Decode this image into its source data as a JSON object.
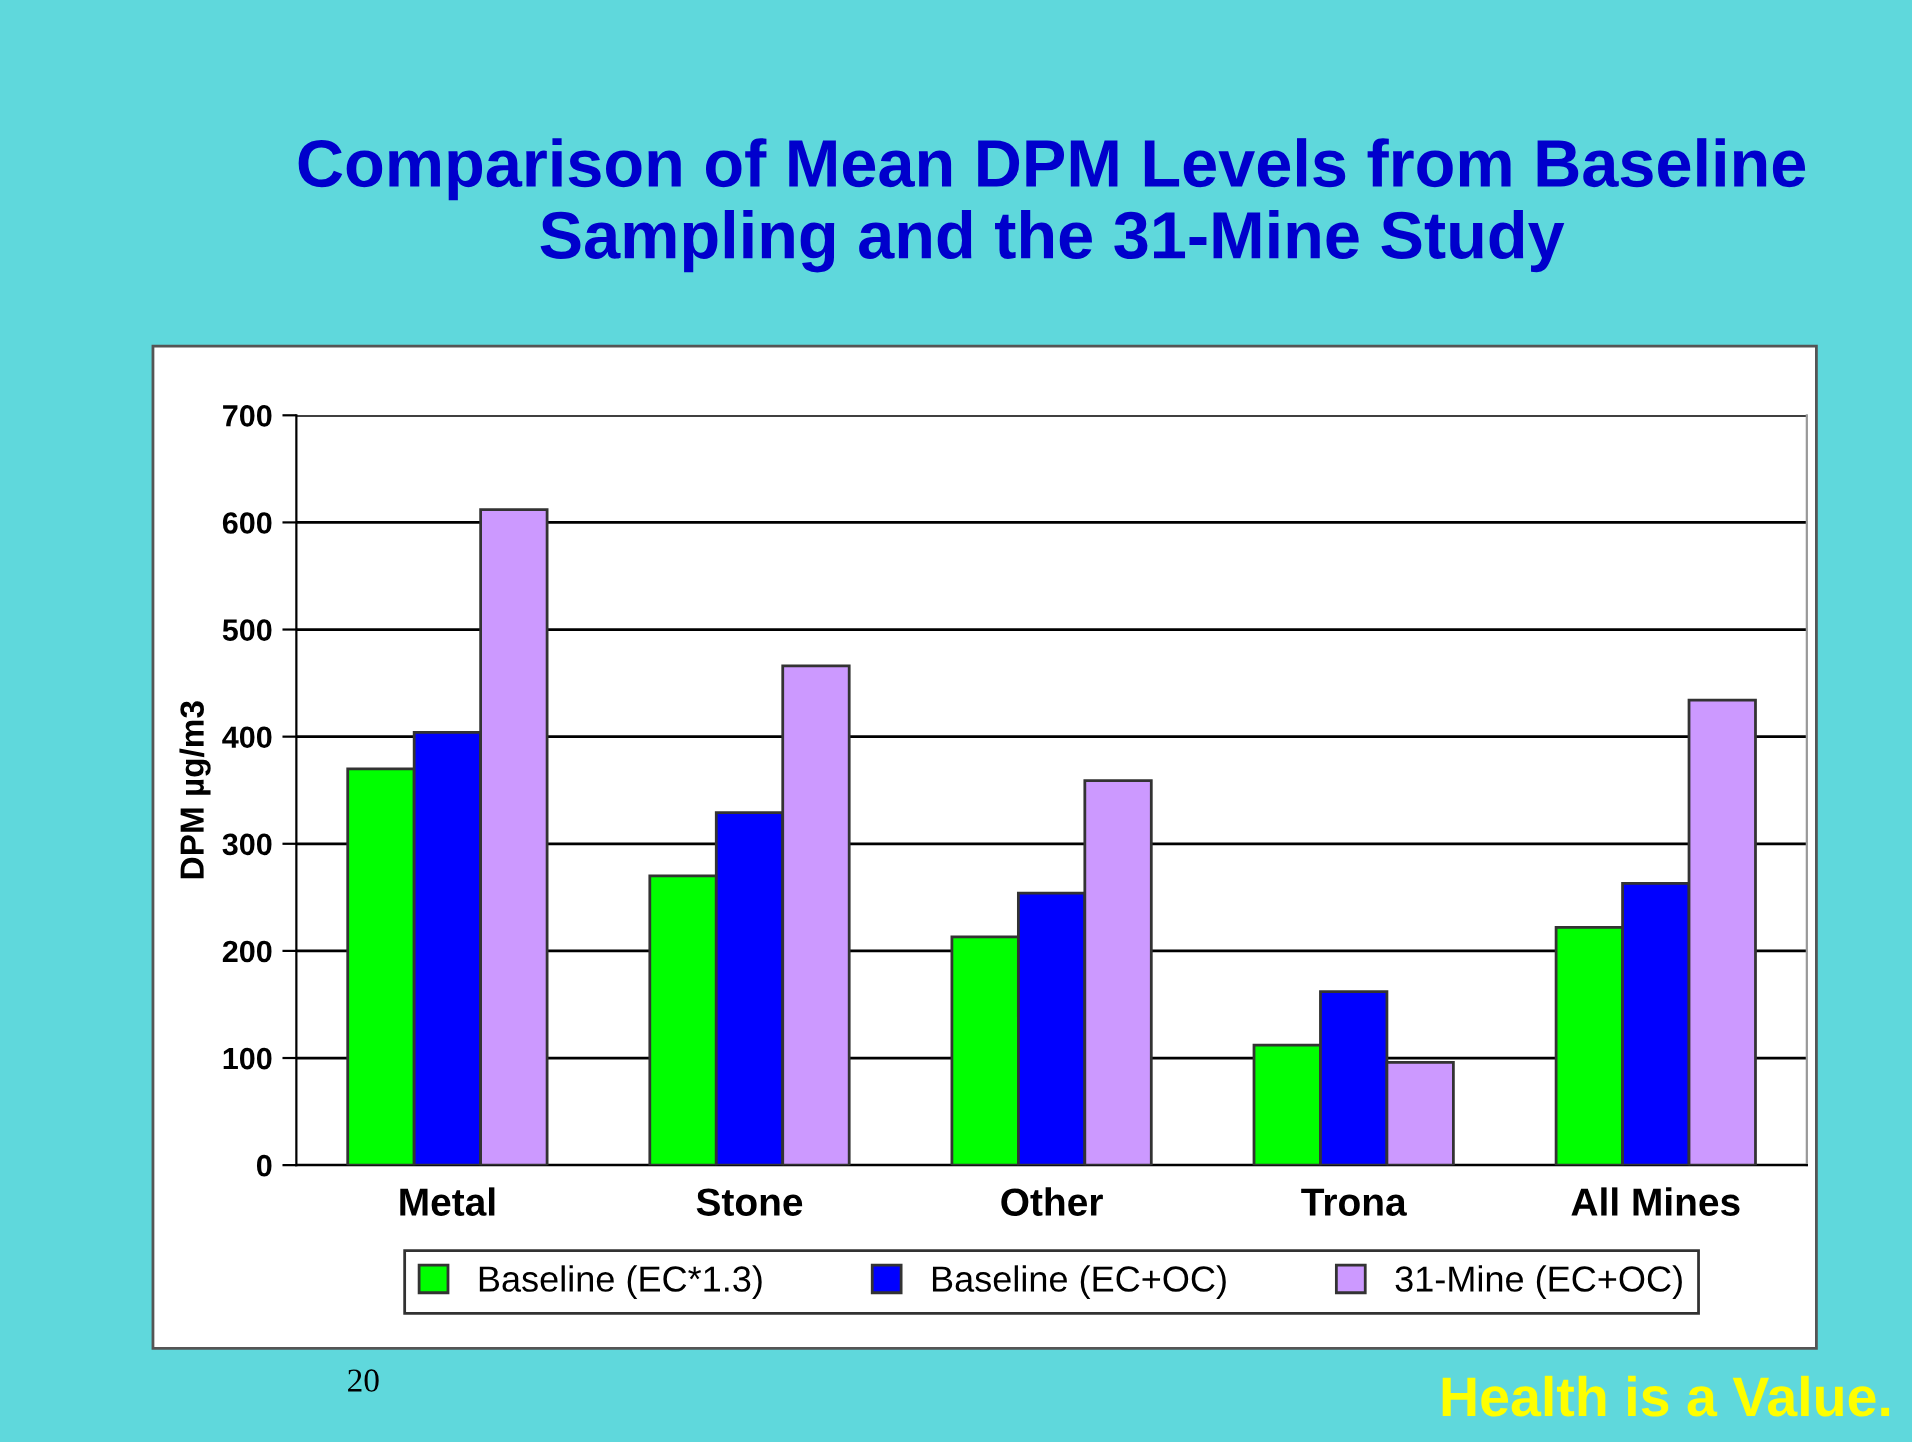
{
  "chart_data": {
    "type": "bar",
    "title": "Comparison of Mean DPM Levels from Baseline Sampling and the 31-Mine Study",
    "ylabel": "DPM µg/m3",
    "categories": [
      "Metal",
      "Stone",
      "Other",
      "Trona",
      "All Mines"
    ],
    "series": [
      {
        "name": "Baseline (EC*1.3)",
        "color": "#00ff00",
        "values": [
          370,
          270,
          213,
          112,
          222
        ]
      },
      {
        "name": "Baseline (EC+OC)",
        "color": "#0000ff",
        "values": [
          404,
          329,
          254,
          162,
          263
        ]
      },
      {
        "name": "31-Mine (EC+OC)",
        "color": "#cc99ff",
        "values": [
          612,
          466,
          359,
          96,
          434
        ]
      }
    ],
    "ylim": [
      0,
      700
    ],
    "yticks": [
      0,
      100,
      200,
      300,
      400,
      500,
      600,
      700
    ],
    "grid": "y",
    "legend": "bottom",
    "annotations": [
      "20",
      "Health is a Value."
    ]
  }
}
